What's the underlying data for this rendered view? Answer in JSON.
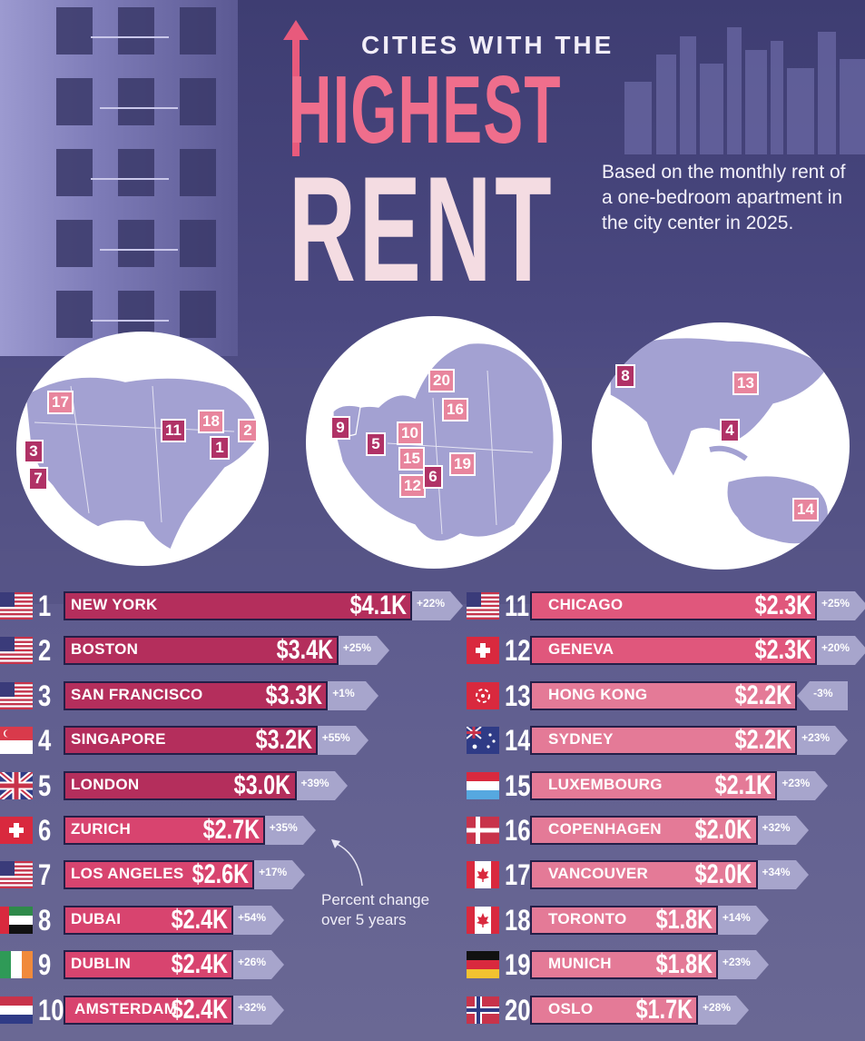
{
  "header": {
    "kicker": "CITIES WITH THE",
    "title_1": "HIGHEST",
    "title_2": "RENT",
    "subtitle": "Based on the monthly rent of a one-bedroom apartment in the city center in 2025."
  },
  "annotation": {
    "note": "Percent change over 5 years"
  },
  "colors": {
    "bar_dark": "#b42e5c",
    "bar_mid": "#d8446f",
    "bar_light": "#e47a97",
    "arrow": "#a7a5cc",
    "marker": "#b03266",
    "marker_light": "#e8859d"
  },
  "chart_data": {
    "type": "bar",
    "unit": "$ per month",
    "categories": [
      "NEW YORK",
      "BOSTON",
      "SAN FRANCISCO",
      "SINGAPORE",
      "LONDON",
      "ZURICH",
      "LOS ANGELES",
      "DUBAI",
      "DUBLIN",
      "AMSTERDAM",
      "CHICAGO",
      "GENEVA",
      "HONG KONG",
      "SYDNEY",
      "LUXEMBOURG",
      "COPENHAGEN",
      "VANCOUVER",
      "TORONTO",
      "MUNICH",
      "OSLO"
    ],
    "values": [
      4100,
      3400,
      3300,
      3200,
      3000,
      2700,
      2600,
      2400,
      2400,
      2400,
      2300,
      2300,
      2200,
      2200,
      2100,
      2000,
      2000,
      1800,
      1800,
      1700
    ],
    "rows": [
      {
        "rank": "1",
        "city": "NEW YORK",
        "value": 4100,
        "label": "$4.1K",
        "change_label": "+22%",
        "change": 22,
        "flag": "us"
      },
      {
        "rank": "2",
        "city": "BOSTON",
        "value": 3400,
        "label": "$3.4K",
        "change_label": "+25%",
        "change": 25,
        "flag": "us"
      },
      {
        "rank": "3",
        "city": "SAN FRANCISCO",
        "value": 3300,
        "label": "$3.3K",
        "change_label": "+1%",
        "change": 1,
        "flag": "us"
      },
      {
        "rank": "4",
        "city": "SINGAPORE",
        "value": 3200,
        "label": "$3.2K",
        "change_label": "+55%",
        "change": 55,
        "flag": "sg"
      },
      {
        "rank": "5",
        "city": "LONDON",
        "value": 3000,
        "label": "$3.0K",
        "change_label": "+39%",
        "change": 39,
        "flag": "uk"
      },
      {
        "rank": "6",
        "city": "ZURICH",
        "value": 2700,
        "label": "$2.7K",
        "change_label": "+35%",
        "change": 35,
        "flag": "ch"
      },
      {
        "rank": "7",
        "city": "LOS ANGELES",
        "value": 2600,
        "label": "$2.6K",
        "change_label": "+17%",
        "change": 17,
        "flag": "us"
      },
      {
        "rank": "8",
        "city": "DUBAI",
        "value": 2400,
        "label": "$2.4K",
        "change_label": "+54%",
        "change": 54,
        "flag": "ae"
      },
      {
        "rank": "9",
        "city": "DUBLIN",
        "value": 2400,
        "label": "$2.4K",
        "change_label": "+26%",
        "change": 26,
        "flag": "ie"
      },
      {
        "rank": "10",
        "city": "AMSTERDAM",
        "value": 2400,
        "label": "$2.4K",
        "change_label": "+32%",
        "change": 32,
        "flag": "nl"
      },
      {
        "rank": "11",
        "city": "CHICAGO",
        "value": 2300,
        "label": "$2.3K",
        "change_label": "+25%",
        "change": 25,
        "flag": "us"
      },
      {
        "rank": "12",
        "city": "GENEVA",
        "value": 2300,
        "label": "$2.3K",
        "change_label": "+20%",
        "change": 20,
        "flag": "ch"
      },
      {
        "rank": "13",
        "city": "HONG KONG",
        "value": 2200,
        "label": "$2.2K",
        "change_label": "-3%",
        "change": -3,
        "flag": "hk"
      },
      {
        "rank": "14",
        "city": "SYDNEY",
        "value": 2200,
        "label": "$2.2K",
        "change_label": "+23%",
        "change": 23,
        "flag": "au"
      },
      {
        "rank": "15",
        "city": "LUXEMBOURG",
        "value": 2100,
        "label": "$2.1K",
        "change_label": "+23%",
        "change": 23,
        "flag": "lu"
      },
      {
        "rank": "16",
        "city": "COPENHAGEN",
        "value": 2000,
        "label": "$2.0K",
        "change_label": "+32%",
        "change": 32,
        "flag": "dk"
      },
      {
        "rank": "17",
        "city": "VANCOUVER",
        "value": 2000,
        "label": "$2.0K",
        "change_label": "+34%",
        "change": 34,
        "flag": "ca"
      },
      {
        "rank": "18",
        "city": "TORONTO",
        "value": 1800,
        "label": "$1.8K",
        "change_label": "+14%",
        "change": 14,
        "flag": "ca"
      },
      {
        "rank": "19",
        "city": "MUNICH",
        "value": 1800,
        "label": "$1.8K",
        "change_label": "+23%",
        "change": 23,
        "flag": "de"
      },
      {
        "rank": "20",
        "city": "OSLO",
        "value": 1700,
        "label": "$1.7K",
        "change_label": "+28%",
        "change": 28,
        "flag": "no"
      }
    ]
  },
  "maps": {
    "north_america": [
      "17",
      "11",
      "18",
      "2",
      "1",
      "3",
      "7"
    ],
    "europe": [
      "20",
      "16",
      "9",
      "10",
      "5",
      "15",
      "19",
      "12",
      "6"
    ],
    "asia_pacific": [
      "8",
      "13",
      "4",
      "14"
    ]
  }
}
